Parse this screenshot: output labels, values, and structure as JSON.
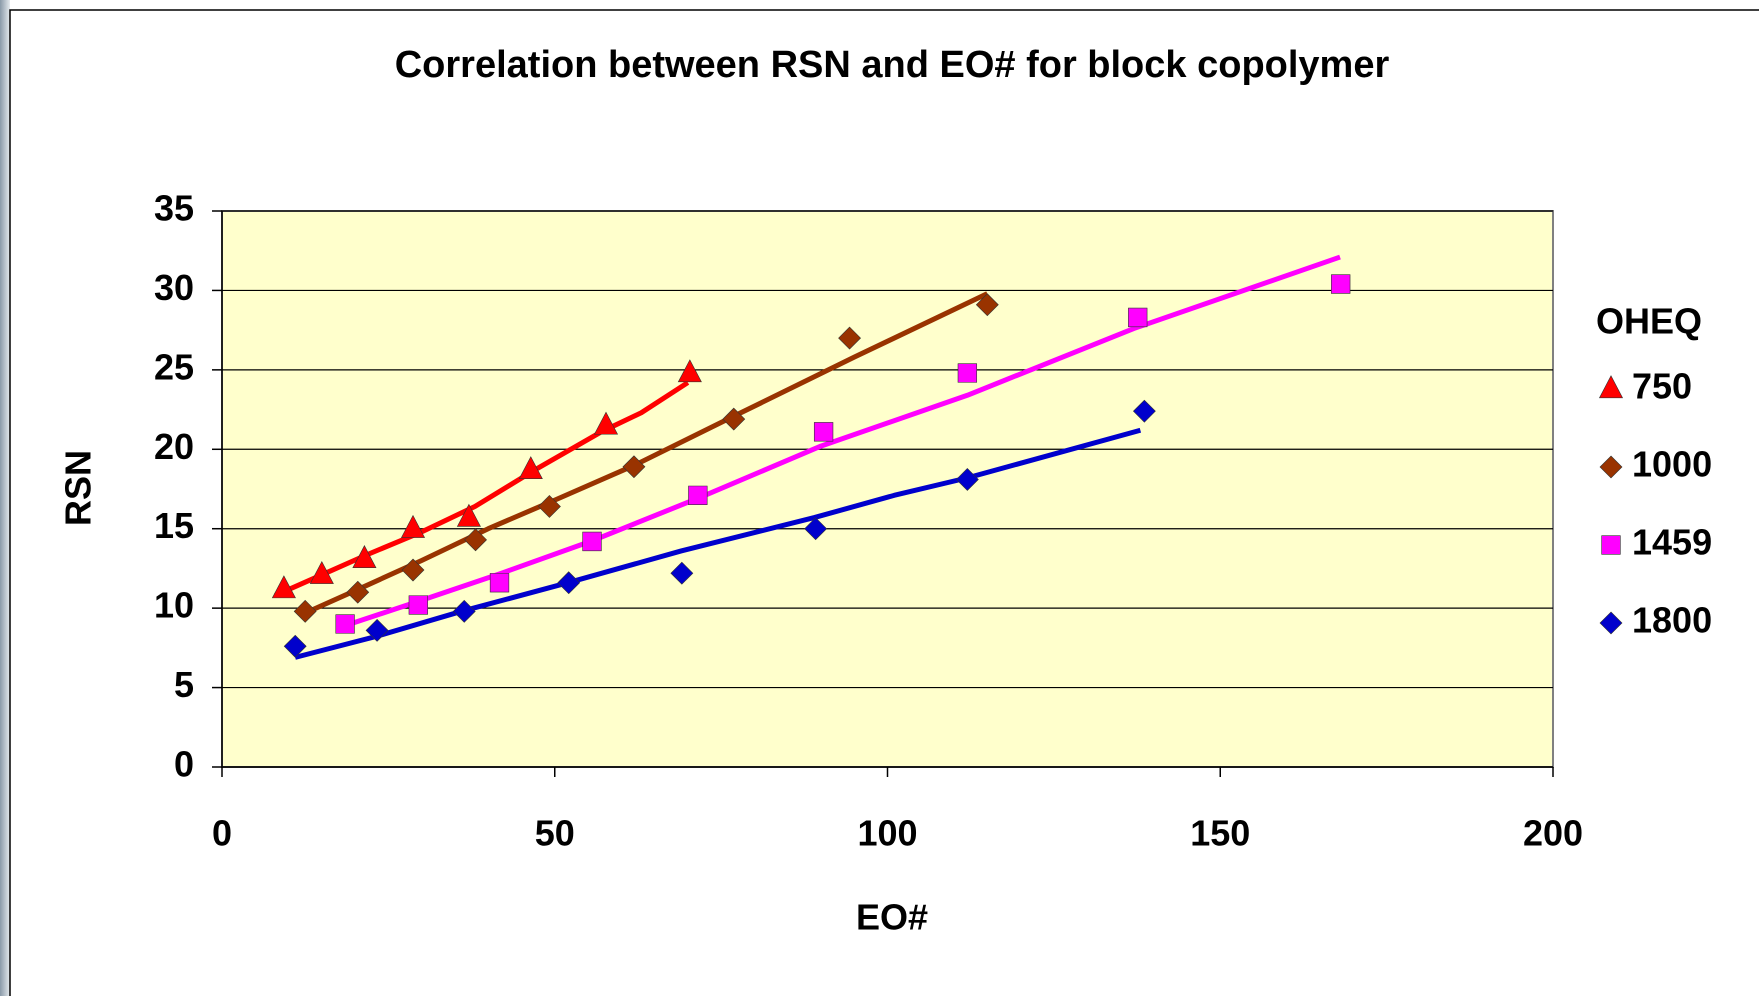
{
  "chart_data": {
    "type": "scatter",
    "title": "Correlation between RSN and EO# for block copolymer",
    "x_label": "EO#",
    "y_label": "RSN",
    "legend_title": "OHEQ",
    "xlim": [
      0,
      200
    ],
    "xticks": [
      0,
      50,
      100,
      150,
      200
    ],
    "ylim": [
      0,
      35
    ],
    "yticks": [
      0,
      5,
      10,
      15,
      20,
      25,
      30,
      35
    ],
    "grid": true,
    "plot_background": "#ffffcc",
    "legend_position": "right",
    "series": [
      {
        "name": "750",
        "color": "#ff0000",
        "marker": "triangle",
        "x": [
          9.3,
          15.0,
          21.4,
          28.7,
          37.1,
          46.4,
          57.7,
          70.3
        ],
        "values": [
          11.2,
          12.1,
          13.1,
          15.0,
          15.7,
          18.7,
          21.5,
          24.8
        ],
        "fit_x": [
          8,
          15,
          22,
          30,
          38,
          47,
          57,
          63,
          70
        ],
        "fit_values": [
          10.8,
          12.1,
          13.4,
          14.8,
          16.4,
          18.7,
          21.1,
          22.3,
          24.2
        ]
      },
      {
        "name": "1000",
        "color": "#993300",
        "marker": "diamond",
        "x": [
          12.5,
          20.4,
          28.7,
          38.1,
          49.2,
          61.9,
          76.9,
          94.3,
          115.0
        ],
        "values": [
          9.8,
          11.0,
          12.4,
          14.3,
          16.4,
          18.9,
          21.9,
          27.0,
          29.1
        ],
        "fit_x": [
          12,
          20,
          30,
          40,
          50,
          62,
          77,
          95,
          115
        ],
        "fit_values": [
          9.6,
          11.1,
          13.0,
          15.0,
          16.8,
          19.0,
          22.1,
          25.8,
          29.8
        ]
      },
      {
        "name": "1459",
        "color": "#ff00ff",
        "marker": "square",
        "x": [
          18.5,
          29.5,
          41.7,
          55.6,
          71.5,
          90.4,
          112.0,
          137.6,
          168.1
        ],
        "values": [
          9.0,
          10.2,
          11.6,
          14.2,
          17.1,
          21.1,
          24.8,
          28.3,
          30.4
        ],
        "fit_x": [
          18.5,
          30,
          42,
          56,
          72,
          90,
          112,
          137,
          168
        ],
        "fit_values": [
          8.9,
          10.5,
          12.2,
          14.3,
          17.0,
          20.2,
          23.4,
          27.6,
          32.1
        ]
      },
      {
        "name": "1800",
        "color": "#0000cc",
        "marker": "diamond",
        "x": [
          11.0,
          23.3,
          36.4,
          52.1,
          69.1,
          89.2,
          112.0,
          138.6
        ],
        "values": [
          7.6,
          8.6,
          9.8,
          11.6,
          12.2,
          15.0,
          18.1,
          22.4
        ],
        "fit_x": [
          11,
          23,
          36,
          52,
          69,
          89,
          101,
          112,
          138
        ],
        "fit_values": [
          6.9,
          8.2,
          9.8,
          11.6,
          13.6,
          15.7,
          17.1,
          18.2,
          21.2
        ]
      }
    ]
  }
}
